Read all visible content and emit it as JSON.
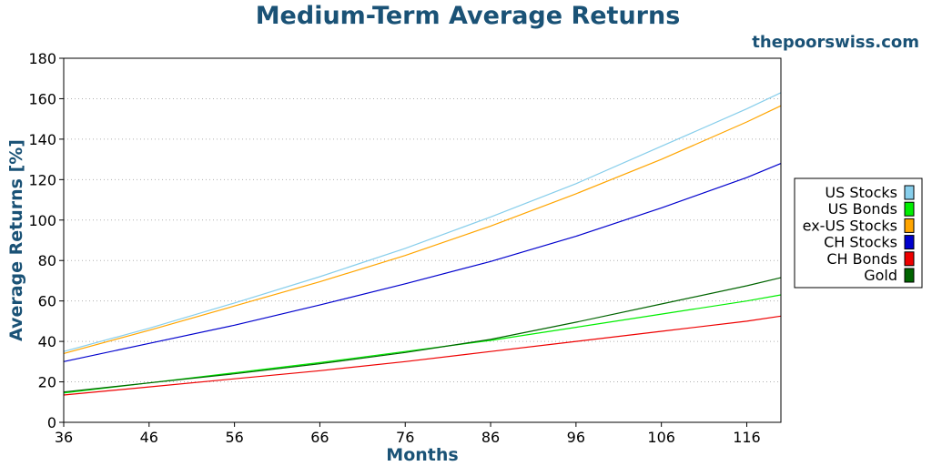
{
  "chart_data": {
    "type": "line",
    "title": "Medium-Term Average Returns",
    "watermark": "thepoorswiss.com",
    "xlabel": "Months",
    "ylabel": "Average Returns [%]",
    "xlim": [
      36,
      120
    ],
    "ylim": [
      0,
      180
    ],
    "x_ticks": [
      36,
      46,
      56,
      66,
      76,
      86,
      96,
      106,
      116
    ],
    "y_ticks": [
      0,
      20,
      40,
      60,
      80,
      100,
      120,
      140,
      160,
      180
    ],
    "grid": "horizontal-dotted",
    "legend_position": "right",
    "x": [
      36,
      46,
      56,
      66,
      76,
      86,
      96,
      106,
      116,
      120
    ],
    "series": [
      {
        "name": "US Stocks",
        "color": "#87ceeb",
        "values": [
          35,
          46.5,
          59,
          72,
          86,
          101.5,
          118,
          136.5,
          155,
          163
        ]
      },
      {
        "name": "US Bonds",
        "color": "#00ee00",
        "values": [
          14.5,
          19.5,
          24.5,
          29.5,
          35,
          40.5,
          47,
          53.5,
          60,
          63
        ]
      },
      {
        "name": "ex-US Stocks",
        "color": "#ffa500",
        "values": [
          34,
          45.5,
          57.5,
          69.5,
          82.5,
          97,
          113,
          130,
          148.5,
          156.5
        ]
      },
      {
        "name": "CH Stocks",
        "color": "#0000cd",
        "values": [
          30,
          39,
          48,
          58,
          68.5,
          79.5,
          92,
          106,
          121,
          128
        ]
      },
      {
        "name": "CH Bonds",
        "color": "#ee0000",
        "values": [
          13.5,
          17.5,
          21.5,
          25.5,
          30,
          35,
          40,
          45,
          50,
          52.5
        ]
      },
      {
        "name": "Gold",
        "color": "#006400",
        "values": [
          15,
          19.5,
          24,
          29,
          34.5,
          41,
          49.5,
          58.5,
          67.5,
          71.5
        ]
      }
    ]
  }
}
